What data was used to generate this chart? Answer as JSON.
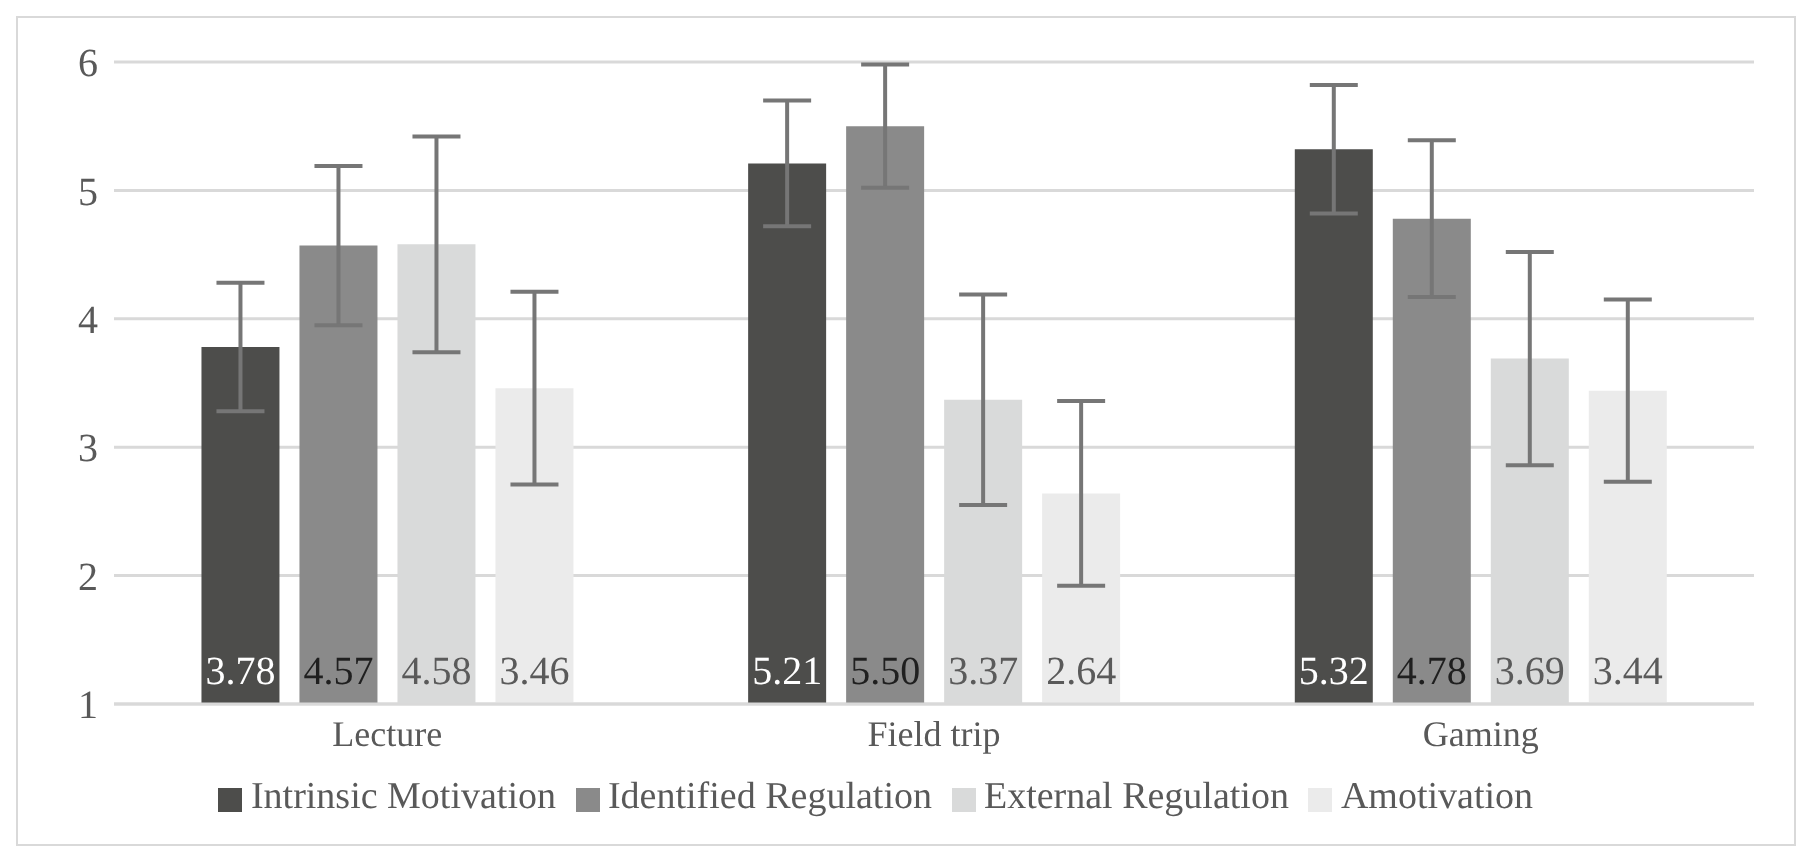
{
  "chart_data": {
    "type": "bar",
    "categories": [
      "Lecture",
      "Field trip",
      "Gaming"
    ],
    "series": [
      {
        "name": "Intrinsic Motivation",
        "color": "#4d4d4b",
        "values": [
          3.78,
          5.21,
          5.32
        ],
        "errors": [
          0.5,
          0.49,
          0.5
        ]
      },
      {
        "name": "Identified Regulation",
        "color": "#8a8a8a",
        "values": [
          4.57,
          5.5,
          4.78
        ],
        "errors": [
          0.62,
          0.48,
          0.61
        ]
      },
      {
        "name": "External Regulation",
        "color": "#d9dada",
        "values": [
          4.58,
          3.37,
          3.69
        ],
        "errors": [
          0.84,
          0.82,
          0.83
        ]
      },
      {
        "name": "Amotivation",
        "color": "#ebebeb",
        "values": [
          3.46,
          2.64,
          3.44
        ],
        "errors": [
          0.75,
          0.72,
          0.71
        ]
      }
    ],
    "value_labels": [
      [
        "3.78",
        "5.21",
        "5.32"
      ],
      [
        "4.57",
        "5.50",
        "4.78"
      ],
      [
        "4.58",
        "3.37",
        "3.69"
      ],
      [
        "3.46",
        "2.64",
        "3.44"
      ]
    ],
    "ylim": [
      1,
      6
    ],
    "yticks": [
      1,
      2,
      3,
      4,
      5,
      6
    ],
    "grid": "y",
    "legend": "bottom"
  }
}
